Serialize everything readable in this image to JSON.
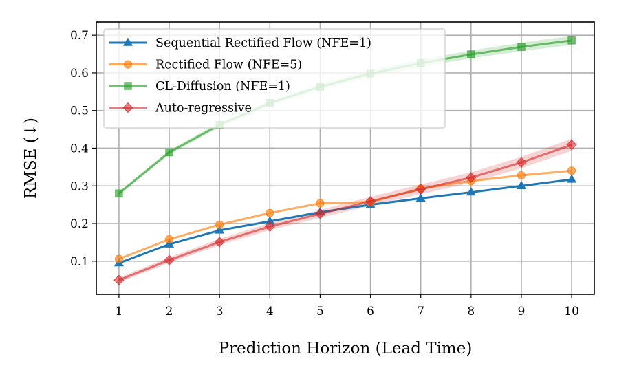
{
  "chart_data": {
    "type": "line",
    "xlabel": "Prediction Horizon (Lead Time)",
    "ylabel": "RMSE (↓)",
    "x": [
      1,
      2,
      3,
      4,
      5,
      6,
      7,
      8,
      9,
      10
    ],
    "xlim": [
      0.55,
      10.45
    ],
    "ylim": [
      0.012,
      0.735
    ],
    "xticks": [
      "1",
      "2",
      "3",
      "4",
      "5",
      "6",
      "7",
      "8",
      "9",
      "10"
    ],
    "yticks": [
      0.1,
      0.2,
      0.3,
      0.4,
      0.5,
      0.6,
      0.7
    ],
    "ytick_labels": [
      "0.1",
      "0.2",
      "0.3",
      "0.4",
      "0.5",
      "0.6",
      "0.7"
    ],
    "grid": true,
    "legend_position": "top-left",
    "series": [
      {
        "name": "Sequential Rectified Flow (NFE=1)",
        "color": "#1f77b4",
        "marker": "triangle",
        "values": [
          0.095,
          0.145,
          0.182,
          0.206,
          0.23,
          0.25,
          0.267,
          0.283,
          0.3,
          0.317
        ],
        "band": 0
      },
      {
        "name": "Rectified Flow (NFE=5)",
        "color": "#ff7f0e",
        "marker": "circle",
        "values": [
          0.106,
          0.158,
          0.197,
          0.228,
          0.254,
          0.257,
          0.293,
          0.313,
          0.328,
          0.34
        ],
        "band": 0
      },
      {
        "name": "CL-Diffusion (NFE=1)",
        "color": "#2ca02c",
        "marker": "square",
        "values": [
          0.28,
          0.389,
          0.462,
          0.52,
          0.563,
          0.598,
          0.626,
          0.649,
          0.669,
          0.686
        ],
        "band": 0.012
      },
      {
        "name": "Auto-regressive",
        "color": "#d62728",
        "marker": "diamond",
        "values": [
          0.05,
          0.103,
          0.151,
          0.192,
          0.226,
          0.259,
          0.291,
          0.322,
          0.362,
          0.409
        ],
        "band": 0.016
      }
    ]
  }
}
